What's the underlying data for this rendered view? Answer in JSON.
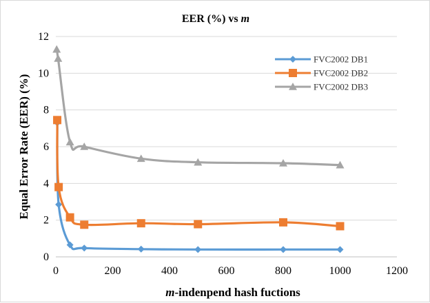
{
  "chart_data": {
    "type": "line",
    "title": {
      "main": "EER (%) vs ",
      "italic": "m"
    },
    "xlabel": {
      "italic": "m",
      "rest": "-indenpend hash fuctions"
    },
    "ylabel": "Equal Error Rate (EER) (%)",
    "xlim": [
      0,
      1200
    ],
    "ylim": [
      0,
      12
    ],
    "xticks": [
      0,
      200,
      400,
      600,
      800,
      1000,
      1200
    ],
    "yticks": [
      0,
      2,
      4,
      6,
      8,
      10,
      12
    ],
    "grid": "horizontal",
    "legend_position": "top-right",
    "x": [
      5,
      10,
      50,
      100,
      300,
      500,
      800,
      1000
    ],
    "series": [
      {
        "name": "FVC2002 DB1",
        "color": "#5b9bd5",
        "marker": "diamond",
        "x": [
          5,
          10,
          50,
          100,
          300,
          500,
          800,
          1000
        ],
        "values": [
          7.3,
          2.85,
          0.65,
          0.48,
          0.42,
          0.4,
          0.4,
          0.4
        ]
      },
      {
        "name": "FVC2002 DB2",
        "color": "#ed7d31",
        "marker": "square",
        "x": [
          5,
          10,
          50,
          100,
          300,
          500,
          800,
          1000
        ],
        "values": [
          7.45,
          3.8,
          2.15,
          1.75,
          1.83,
          1.78,
          1.88,
          1.67
        ]
      },
      {
        "name": "FVC2002 DB3",
        "color": "#a5a5a5",
        "marker": "triangle",
        "x": [
          3,
          8,
          50,
          100,
          300,
          500,
          800,
          1000
        ],
        "values": [
          11.3,
          10.8,
          6.25,
          6.0,
          5.35,
          5.15,
          5.1,
          5.0
        ]
      }
    ]
  }
}
